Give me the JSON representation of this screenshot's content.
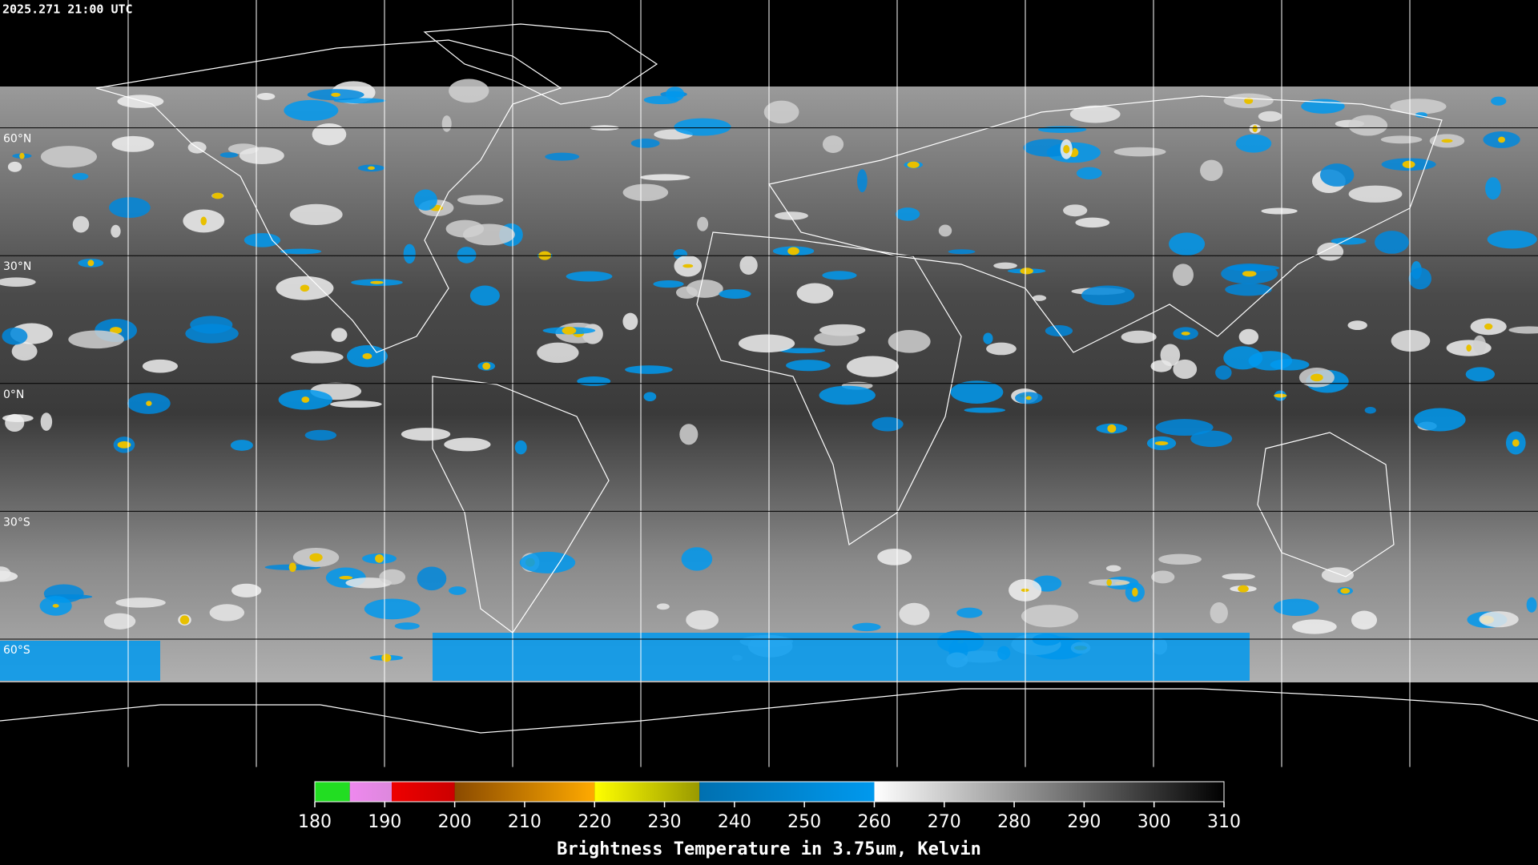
{
  "header": {
    "title": "2025.271 21:00 UTC"
  },
  "map": {
    "lat_lines": [
      {
        "value": 60,
        "label": "60°N"
      },
      {
        "value": 30,
        "label": "30°N"
      },
      {
        "value": 0,
        "label": "0°N"
      },
      {
        "value": -30,
        "label": "30°S"
      },
      {
        "value": -60,
        "label": "60°S"
      }
    ],
    "lon_lines": [
      -150,
      -120,
      -90,
      -60,
      -30,
      0,
      30,
      60,
      90,
      120,
      150
    ]
  },
  "colorbar": {
    "title": "Brightness Temperature in 3.75um, Kelvin",
    "range": [
      180,
      310
    ],
    "ticks": [
      180,
      190,
      200,
      210,
      220,
      230,
      240,
      250,
      260,
      270,
      280,
      290,
      300,
      310
    ],
    "segments": [
      {
        "from": 180,
        "to": 185,
        "colors": [
          "#22dd22",
          "#22dd22"
        ]
      },
      {
        "from": 185,
        "to": 191,
        "colors": [
          "#ee88ee",
          "#dd88dd"
        ]
      },
      {
        "from": 191,
        "to": 200,
        "colors": [
          "#ee0000",
          "#cc0000"
        ]
      },
      {
        "from": 200,
        "to": 220,
        "colors": [
          "#8a4a00",
          "#ffaa00"
        ]
      },
      {
        "from": 220,
        "to": 235,
        "colors": [
          "#ffff00",
          "#999900"
        ]
      },
      {
        "from": 235,
        "to": 260,
        "colors": [
          "#0070b0",
          "#0099ee"
        ]
      },
      {
        "from": 260,
        "to": 310,
        "colors": [
          "#ffffff",
          "#000000"
        ]
      }
    ]
  }
}
